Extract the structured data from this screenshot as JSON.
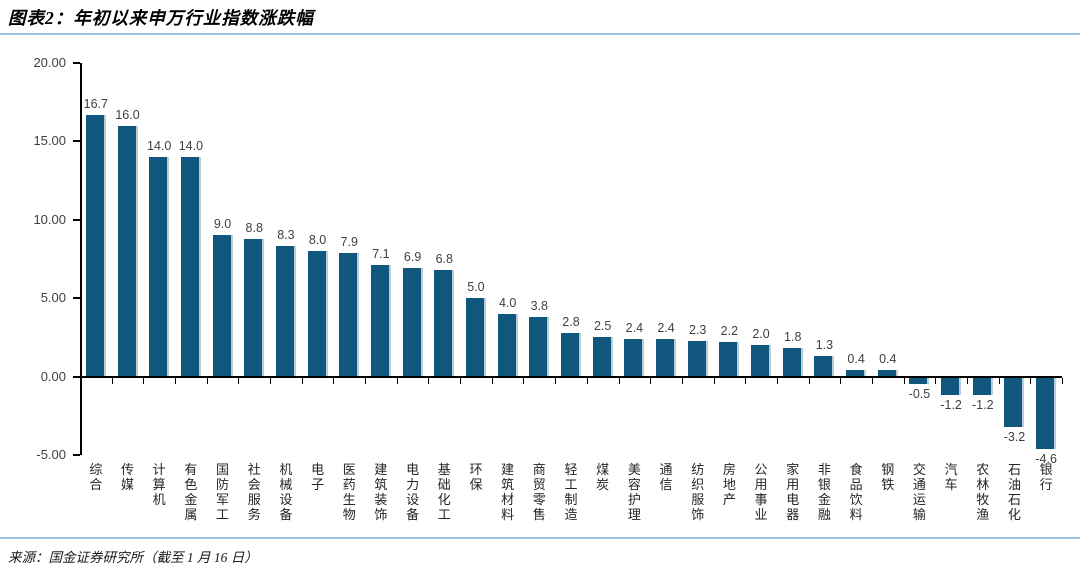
{
  "figure": {
    "title": "图表2：年初以来申万行业指数涨跌幅",
    "source_note": "来源：国金证券研究所（截至 1 月 16 日）"
  },
  "chart_data": {
    "type": "bar",
    "title": "年初以来申万行业指数涨跌幅",
    "categories": [
      "综合",
      "传媒",
      "计算机",
      "有色金属",
      "国防军工",
      "社会服务",
      "机械设备",
      "电子",
      "医药生物",
      "建筑装饰",
      "电力设备",
      "基础化工",
      "环保",
      "建筑材料",
      "商贸零售",
      "轻工制造",
      "煤炭",
      "美容护理",
      "通信",
      "纺织服饰",
      "房地产",
      "公用事业",
      "家用电器",
      "非银金融",
      "食品饮料",
      "钢铁",
      "交通运输",
      "汽车",
      "农林牧渔",
      "石油石化",
      "银行"
    ],
    "values": [
      16.7,
      16.0,
      14.0,
      14.0,
      9.0,
      8.8,
      8.3,
      8.0,
      7.9,
      7.1,
      6.9,
      6.8,
      5.0,
      4.0,
      3.8,
      2.8,
      2.5,
      2.4,
      2.4,
      2.3,
      2.2,
      2.0,
      1.8,
      1.3,
      0.4,
      0.4,
      -0.5,
      -1.2,
      -1.2,
      -3.2,
      -4.6
    ],
    "value_labels": [
      "16.7",
      "16.0",
      "14.0",
      "14.0",
      "9.0",
      "8.8",
      "8.3",
      "8.0",
      "7.9",
      "7.1",
      "6.9",
      "6.8",
      "5.0",
      "4.0",
      "3.8",
      "2.8",
      "2.5",
      "2.4",
      "2.4",
      "2.3",
      "2.2",
      "2.0",
      "1.8",
      "1.3",
      "0.4",
      "0.4",
      "-0.5",
      "-1.2",
      "-1.2",
      "-3.2",
      "-4.6"
    ],
    "xlabel": "",
    "ylabel": "",
    "ylim": [
      -5,
      20
    ],
    "y_ticks": [
      20,
      15,
      10,
      5,
      0,
      -5
    ],
    "y_tick_labels": [
      "20.00",
      "15.00",
      "10.00",
      "5.00",
      "0.00",
      "-5.00"
    ],
    "grid": false,
    "legend_position": "none",
    "bar_color": "#11567C",
    "bar_edge_color": "#B9CDD9",
    "axis_color": "#000000",
    "value_label_color": "#404040",
    "accent_line_color": "#9CC3E6"
  }
}
